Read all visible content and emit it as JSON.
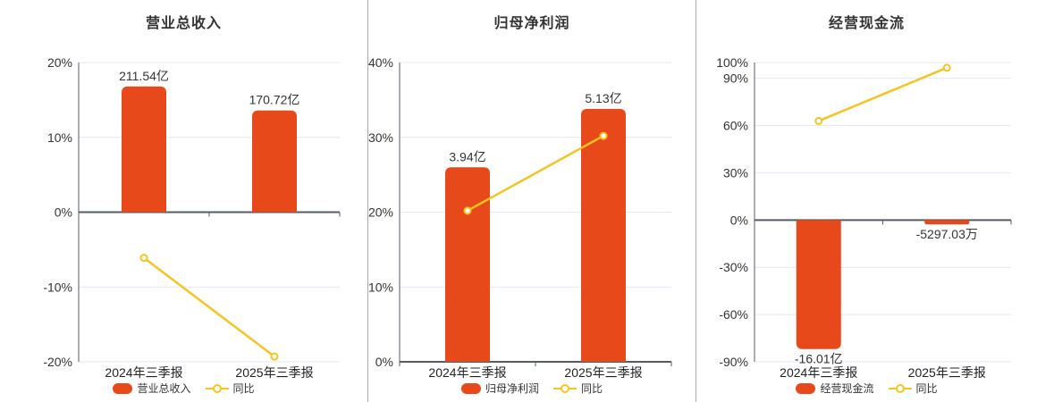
{
  "colors": {
    "background": "#ffffff",
    "bar": "#e8491a",
    "line": "#f4c521",
    "marker_fill": "#ffffff",
    "grid": "#e2e8f4",
    "axis": "#565b64",
    "divider": "#aaaaaa",
    "title_text": "#333333",
    "tick_text": "#333333",
    "category_text": "#222222",
    "value_text": "#333333",
    "legend_text": "#333333"
  },
  "chart_data": [
    {
      "type": "bar+line",
      "title": "营业总收入",
      "categories": [
        "2024年三季报",
        "2025年三季报"
      ],
      "bar_series": {
        "name": "营业总收入",
        "value_labels": [
          "211.54亿",
          "170.72亿"
        ],
        "display_pct": [
          16.8,
          13.6
        ]
      },
      "line_series": {
        "name": "同比",
        "values_pct": [
          -6.1,
          -19.3
        ]
      },
      "y_axis": {
        "tick_labels": [
          "20%",
          "10%",
          "0%",
          "-10%",
          "-20%"
        ],
        "tick_values": [
          20,
          10,
          0,
          -10,
          -20
        ],
        "max": 20,
        "min": -20
      },
      "legend": [
        "营业总收入",
        "同比"
      ]
    },
    {
      "type": "bar+line",
      "title": "归母净利润",
      "categories": [
        "2024年三季报",
        "2025年三季报"
      ],
      "bar_series": {
        "name": "归母净利润",
        "value_labels": [
          "3.94亿",
          "5.13亿"
        ],
        "display_pct": [
          26.0,
          33.8
        ]
      },
      "line_series": {
        "name": "同比",
        "values_pct": [
          20.2,
          30.2
        ]
      },
      "y_axis": {
        "tick_labels": [
          "40%",
          "30%",
          "20%",
          "10%",
          "0%"
        ],
        "tick_values": [
          40,
          30,
          20,
          10,
          0
        ],
        "max": 40,
        "min": 0
      },
      "legend": [
        "归母净利润",
        "同比"
      ]
    },
    {
      "type": "bar+line",
      "title": "经营现金流",
      "categories": [
        "2024年三季报",
        "2025年三季报"
      ],
      "bar_series": {
        "name": "经营现金流",
        "value_labels": [
          "-16.01亿",
          "-5297.03万"
        ],
        "display_pct": [
          -81.9,
          -2.7
        ]
      },
      "line_series": {
        "name": "同比",
        "values_pct": [
          62.9,
          96.69
        ]
      },
      "y_axis": {
        "tick_labels": [
          "100%",
          "90%",
          "60%",
          "30%",
          "0%",
          "-30%",
          "-60%",
          "-90%"
        ],
        "tick_values": [
          100,
          90,
          60,
          30,
          0,
          -30,
          -60,
          -90
        ],
        "max": 100,
        "min": -90
      },
      "legend": [
        "经营现金流",
        "同比"
      ]
    }
  ]
}
